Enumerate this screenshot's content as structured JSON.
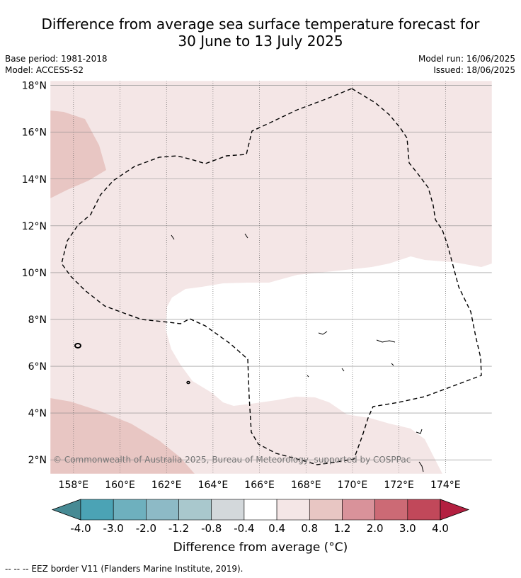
{
  "title": {
    "line1": "Difference from average sea surface temperature forecast for",
    "line2": "30 June to 13 July 2025"
  },
  "meta": {
    "base_period": "Base period: 1981-2018",
    "model": "Model: ACCESS-S2",
    "model_run": "Model run: 16/06/2025",
    "issued": "Issued: 18/06/2025"
  },
  "map": {
    "lon_range": [
      157,
      176
    ],
    "lat_range": [
      1.4,
      18.2
    ],
    "lat_ticks": [
      "2°N",
      "4°N",
      "6°N",
      "8°N",
      "10°N",
      "12°N",
      "14°N",
      "16°N",
      "18°N"
    ],
    "lat_values": [
      2,
      4,
      6,
      8,
      10,
      12,
      14,
      16,
      18
    ],
    "lon_ticks": [
      "158°E",
      "160°E",
      "162°E",
      "164°E",
      "166°E",
      "168°E",
      "170°E",
      "172°E",
      "174°E"
    ],
    "lon_values": [
      158,
      160,
      162,
      164,
      166,
      168,
      170,
      172,
      174
    ],
    "copyright": "© Commonwealth of Australia 2025, Bureau of Meteorology, supported by COSPPac",
    "colors": {
      "light_pink": "#f4e6e6",
      "pink": "#e8c6c3",
      "white": "#ffffff"
    }
  },
  "colorbar": {
    "title": "Difference from average (°C)",
    "tick_labels": [
      "-4.0",
      "-3.0",
      "-2.0",
      "-1.2",
      "-0.8",
      "-0.4",
      "0.4",
      "0.8",
      "1.2",
      "2.0",
      "3.0",
      "4.0"
    ],
    "colors": [
      "#478a94",
      "#4ba3b5",
      "#6eb0be",
      "#8dbac6",
      "#a9c8cd",
      "#d3d8db",
      "#ffffff",
      "#f4e6e6",
      "#e8c6c3",
      "#d9929a",
      "#cc6a75",
      "#c1485a",
      "#b31f40"
    ]
  },
  "footnote": "--  --  -- EEZ border V11 (Flanders Marine Institute, 2019)."
}
